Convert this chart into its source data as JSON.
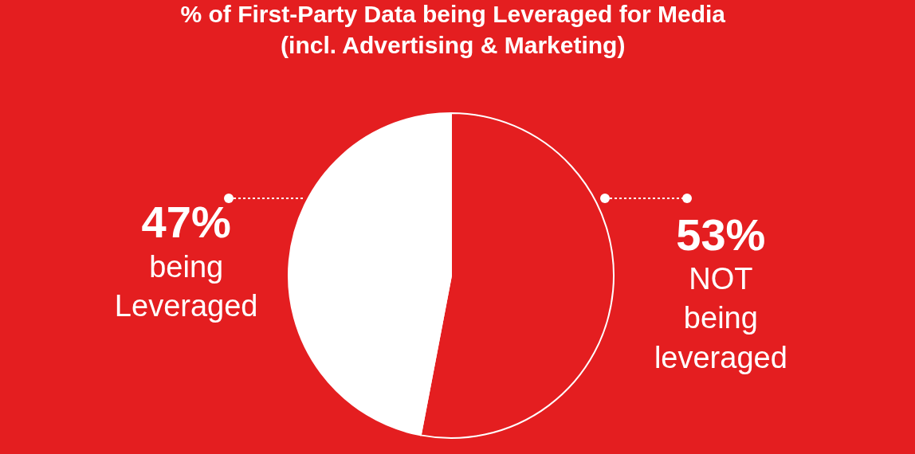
{
  "chart_data": {
    "type": "pie",
    "title": "% of First-Party Data being Leveraged for Media\n(incl. Advertising & Marketing)",
    "categories": [
      "NOT\nbeing\nleveraged",
      "being\nLeveraged"
    ],
    "values": [
      53,
      47
    ],
    "colors": [
      "#e41e20",
      "#ffffff"
    ],
    "value_labels": [
      "53%",
      "47%"
    ]
  }
}
